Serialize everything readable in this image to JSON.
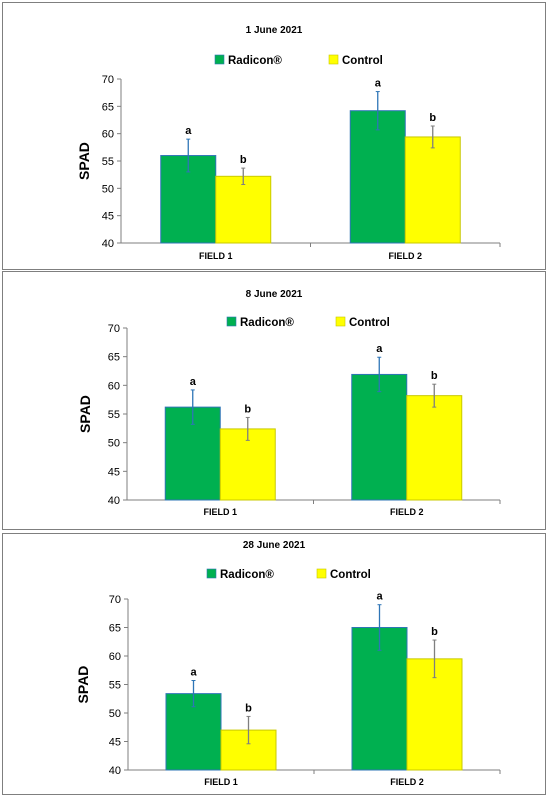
{
  "chart_data": [
    {
      "type": "bar",
      "title": "1 June 2021",
      "ylabel": "SPAD",
      "xlabel": "",
      "ylim": [
        40,
        70
      ],
      "yticks": [
        40,
        45,
        50,
        55,
        60,
        65,
        70
      ],
      "categories": [
        "FIELD 1",
        "FIELD 2"
      ],
      "legend_position": "top-center",
      "series": [
        {
          "name": "Radicon®",
          "color": "#00b050",
          "edge": "#2e75b6",
          "values": [
            56,
            64.2
          ],
          "errors": [
            3,
            3.5
          ],
          "error_color": "#2e75b6",
          "letters": [
            "a",
            "a"
          ]
        },
        {
          "name": "Control",
          "color": "#ffff00",
          "edge": "#c9c900",
          "values": [
            52.2,
            59.4
          ],
          "errors": [
            1.5,
            2
          ],
          "error_color": "#7f7f7f",
          "letters": [
            "b",
            "b"
          ]
        }
      ]
    },
    {
      "type": "bar",
      "title": "8 June 2021",
      "ylabel": "SPAD",
      "xlabel": "",
      "ylim": [
        40,
        70
      ],
      "yticks": [
        40,
        45,
        50,
        55,
        60,
        65,
        70
      ],
      "categories": [
        "FIELD 1",
        "FIELD 2"
      ],
      "legend_position": "top-center",
      "series": [
        {
          "name": "Radicon®",
          "color": "#00b050",
          "edge": "#2e75b6",
          "values": [
            56.2,
            61.9
          ],
          "errors": [
            3,
            3
          ],
          "error_color": "#2e75b6",
          "letters": [
            "a",
            "a"
          ]
        },
        {
          "name": "Control",
          "color": "#ffff00",
          "edge": "#c9c900",
          "values": [
            52.4,
            58.2
          ],
          "errors": [
            2,
            2
          ],
          "error_color": "#7f7f7f",
          "letters": [
            "b",
            "b"
          ]
        }
      ]
    },
    {
      "type": "bar",
      "title": "28 June 2021",
      "ylabel": "SPAD",
      "xlabel": "",
      "ylim": [
        40,
        70
      ],
      "yticks": [
        40,
        45,
        50,
        55,
        60,
        65,
        70
      ],
      "categories": [
        "FIELD 1",
        "FIELD 2"
      ],
      "legend_position": "top-center",
      "series": [
        {
          "name": "Radicon®",
          "color": "#00b050",
          "edge": "#2e75b6",
          "values": [
            53.4,
            65
          ],
          "errors": [
            2.3,
            4
          ],
          "error_color": "#2e75b6",
          "letters": [
            "a",
            "a"
          ]
        },
        {
          "name": "Control",
          "color": "#ffff00",
          "edge": "#c9c900",
          "values": [
            47,
            59.5
          ],
          "errors": [
            2.4,
            3.3
          ],
          "error_color": "#7f7f7f",
          "letters": [
            "b",
            "b"
          ]
        }
      ]
    }
  ]
}
